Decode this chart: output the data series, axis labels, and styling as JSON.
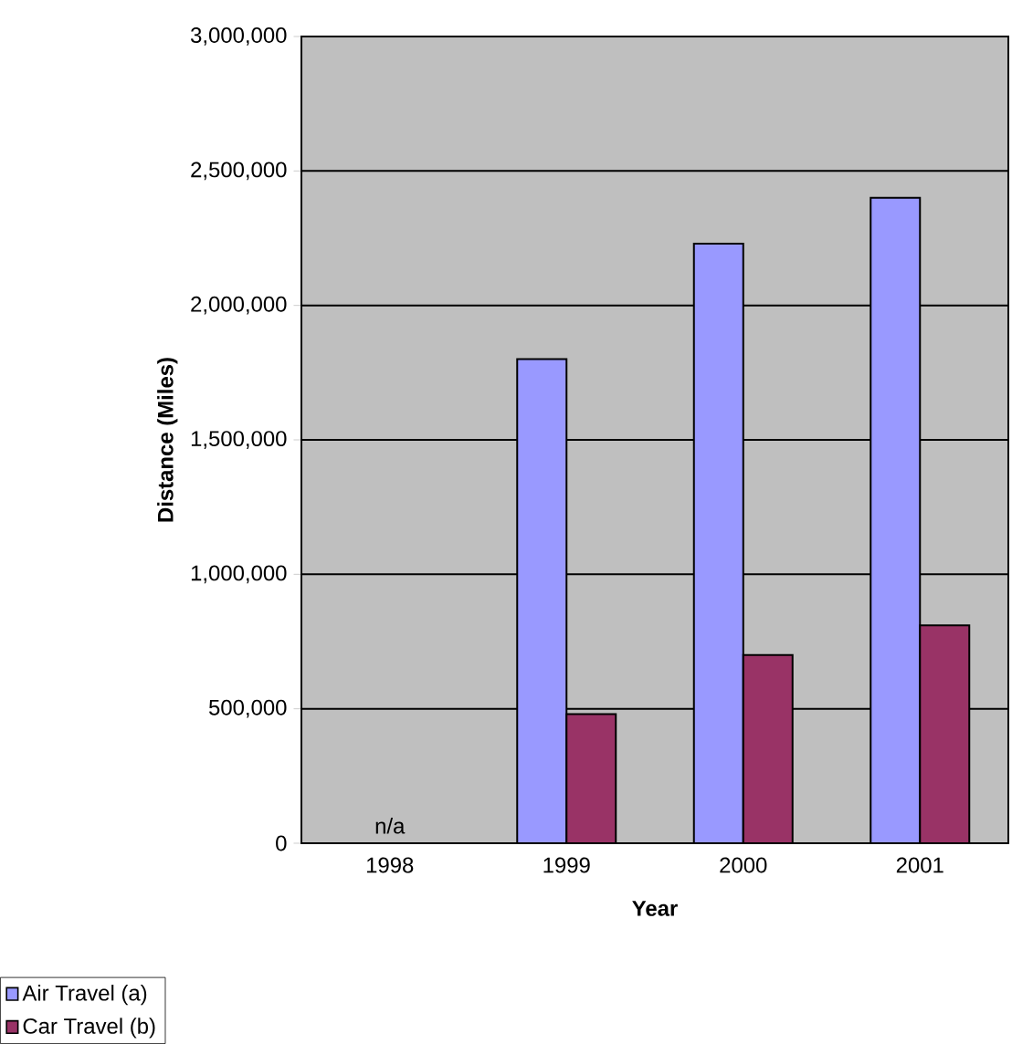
{
  "chart_data": {
    "type": "bar",
    "categories": [
      "1998",
      "1999",
      "2000",
      "2001"
    ],
    "xlabel": "Year",
    "ylabel": "Distance (Miles)",
    "series": [
      {
        "name": "Air Travel (a)",
        "color": "#9999ff",
        "values": [
          null,
          1800000,
          2230000,
          2400000
        ]
      },
      {
        "name": "Car Travel (b)",
        "color": "#993366",
        "values": [
          null,
          480000,
          700000,
          810000
        ]
      }
    ],
    "ylim": [
      0,
      3000000
    ],
    "yticks": [
      0,
      {
        "value": 500000,
        "label": "500,000"
      },
      {
        "value": 1000000,
        "label": "1,000,000"
      },
      {
        "value": 1500000,
        "label": "1,500,000"
      },
      {
        "value": 2000000,
        "label": "2,000,000"
      },
      {
        "value": 2500000,
        "label": "2,500,000"
      },
      {
        "value": 3000000,
        "label": "3,000,000"
      }
    ],
    "grid": "y",
    "legend": "bottom left",
    "annotations": [
      "n/a"
    ]
  }
}
